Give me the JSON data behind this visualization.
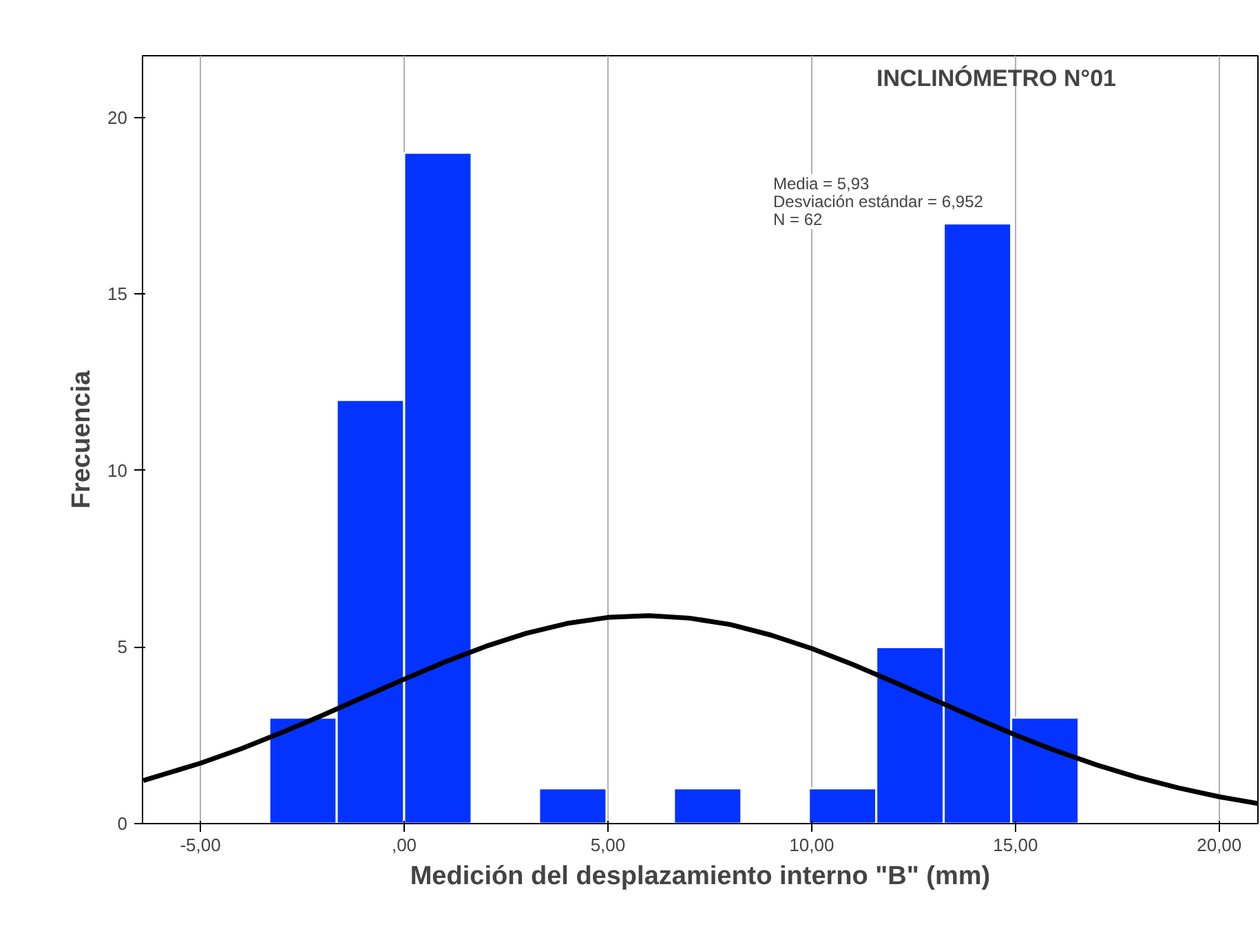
{
  "chart_data": {
    "type": "histogram",
    "title": "INCLINÓMETRO N°01",
    "xlabel": "Medición del desplazamiento interno \"B\" (mm)",
    "ylabel": "Frecuencia",
    "bins": [
      -3.31,
      -1.655,
      0,
      1.655,
      3.31,
      4.965,
      6.62,
      8.275,
      9.93,
      11.585,
      13.24,
      14.895,
      16.55
    ],
    "values": [
      3,
      12,
      19,
      0,
      1,
      0,
      1,
      0,
      1,
      5,
      17,
      3
    ],
    "color": "#0433ff",
    "series": [
      {
        "type": "line",
        "color": "#000000",
        "x": [
          -6.4,
          -5,
          -4,
          -3,
          -2,
          -1,
          0,
          1,
          2,
          3,
          4,
          5,
          6,
          7,
          8,
          9,
          10,
          11,
          12,
          13,
          14,
          15,
          16,
          17,
          18,
          19,
          20,
          20.95
        ],
        "values": [
          1.22,
          1.71,
          2.12,
          2.58,
          3.07,
          3.58,
          4.09,
          4.58,
          5.02,
          5.39,
          5.67,
          5.84,
          5.89,
          5.82,
          5.64,
          5.34,
          4.96,
          4.51,
          4.02,
          3.51,
          3.0,
          2.51,
          2.06,
          1.66,
          1.31,
          1.01,
          0.76,
          0.57
        ]
      }
    ],
    "annotations": [
      "Media = 5,93",
      "Desviación estándar = 6,952",
      "N = 62"
    ],
    "xlim": [
      -6.42,
      20.95
    ],
    "ylim": [
      0,
      21.75
    ],
    "xticks": [
      {
        "value": -5,
        "label": "-5,00"
      },
      {
        "value": 0,
        "label": ",00"
      },
      {
        "value": 5,
        "label": "5,00"
      },
      {
        "value": 10,
        "label": "10,00"
      },
      {
        "value": 15,
        "label": "15,00"
      },
      {
        "value": 20,
        "label": "20,00"
      }
    ],
    "yticks": [
      0,
      5,
      10,
      15,
      20
    ],
    "grid": "x"
  }
}
